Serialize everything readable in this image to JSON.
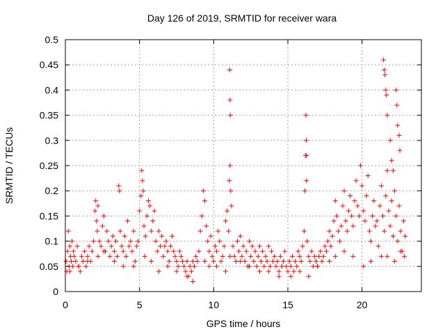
{
  "chart_data": {
    "type": "scatter",
    "title": "Day 126 of 2019, SRMTID for receiver wara",
    "xlabel": "GPS time / hours",
    "ylabel": "SRMTID / TECUs",
    "xlim": [
      0,
      24
    ],
    "ylim": [
      0,
      0.5
    ],
    "x_ticks": [
      0,
      5,
      10,
      15,
      20
    ],
    "x_tick_labels": [
      "0",
      "5",
      "10",
      "15",
      "20"
    ],
    "y_ticks": [
      0,
      0.05,
      0.1,
      0.15,
      0.2,
      0.25,
      0.3,
      0.35,
      0.4,
      0.45,
      0.5
    ],
    "y_tick_labels": [
      "0",
      "0.05",
      "0.1",
      "0.15",
      "0.2",
      "0.25",
      "0.3",
      "0.35",
      "0.4",
      "0.45",
      "0.5"
    ],
    "grid": true,
    "marker": "plus",
    "series_color": "#ff0000",
    "x": [
      0.05,
      0.1,
      0.15,
      0.2,
      0.25,
      0.3,
      0.35,
      0.4,
      0.45,
      0.5,
      0.55,
      0.6,
      0.7,
      0.8,
      0.9,
      1.0,
      1.1,
      1.2,
      1.3,
      1.4,
      1.5,
      1.6,
      1.7,
      1.8,
      1.9,
      2.0,
      2.05,
      2.1,
      2.15,
      2.2,
      2.3,
      2.4,
      2.5,
      2.6,
      2.7,
      2.8,
      2.9,
      3.0,
      3.1,
      3.2,
      3.3,
      3.4,
      3.5,
      3.6,
      3.65,
      3.7,
      3.8,
      3.9,
      4.0,
      4.1,
      4.2,
      4.3,
      4.4,
      4.5,
      4.6,
      4.7,
      4.8,
      4.9,
      5.0,
      5.1,
      5.15,
      5.2,
      5.25,
      5.3,
      5.4,
      5.5,
      5.6,
      5.7,
      5.8,
      5.9,
      6.0,
      6.1,
      6.2,
      6.3,
      6.4,
      6.5,
      6.6,
      6.7,
      6.8,
      6.9,
      7.0,
      7.1,
      7.2,
      7.3,
      7.4,
      7.5,
      7.6,
      7.7,
      7.8,
      7.9,
      8.0,
      8.1,
      8.2,
      8.3,
      8.4,
      8.5,
      8.6,
      8.7,
      8.8,
      8.9,
      9.0,
      9.1,
      9.2,
      9.3,
      9.4,
      9.5,
      9.6,
      9.7,
      9.8,
      9.9,
      10.0,
      10.1,
      10.2,
      10.3,
      10.4,
      10.5,
      10.6,
      10.7,
      10.8,
      10.9,
      11.0,
      11.05,
      11.1,
      11.15,
      11.2,
      11.3,
      11.4,
      11.5,
      11.6,
      11.7,
      11.8,
      11.9,
      12.0,
      12.1,
      12.2,
      12.3,
      12.4,
      12.5,
      12.6,
      12.7,
      12.8,
      12.9,
      13.0,
      13.1,
      13.2,
      13.3,
      13.4,
      13.5,
      13.6,
      13.7,
      13.8,
      13.9,
      14.0,
      14.1,
      14.2,
      14.3,
      14.4,
      14.5,
      14.6,
      14.7,
      14.8,
      14.9,
      15.0,
      15.1,
      15.2,
      15.3,
      15.4,
      15.5,
      15.6,
      15.7,
      15.8,
      15.9,
      16.0,
      16.1,
      16.15,
      16.2,
      16.25,
      16.3,
      16.4,
      16.5,
      16.6,
      16.7,
      16.8,
      16.9,
      17.0,
      17.1,
      17.2,
      17.3,
      17.4,
      17.5,
      17.6,
      17.7,
      17.8,
      17.9,
      18.0,
      18.1,
      18.2,
      18.3,
      18.4,
      18.5,
      18.6,
      18.7,
      18.8,
      18.9,
      19.0,
      19.1,
      19.2,
      19.3,
      19.4,
      19.5,
      19.6,
      19.7,
      19.8,
      19.9,
      20.0,
      20.1,
      20.2,
      20.3,
      20.4,
      20.5,
      20.6,
      20.7,
      20.8,
      20.9,
      21.0,
      21.1,
      21.2,
      21.3,
      21.4,
      21.5,
      21.6,
      21.7,
      21.8,
      21.9,
      22.0,
      22.1,
      22.2,
      22.3,
      22.4,
      22.5,
      22.6,
      22.7,
      22.8,
      22.9,
      0.3,
      0.9,
      1.5,
      2.2,
      2.6,
      3.3,
      3.9,
      4.6,
      5.35,
      5.8,
      6.3,
      6.9,
      7.5,
      8.2,
      8.6,
      9.4,
      9.7,
      10.2,
      10.8,
      11.1,
      11.8,
      12.4,
      13.1,
      13.7,
      14.4,
      15.2,
      15.8,
      16.4,
      17.0,
      17.8,
      18.2,
      18.8,
      19.4,
      20.1,
      20.6,
      21.3,
      21.7,
      22.2,
      22.6,
      22.85,
      11.08,
      11.1,
      11.12,
      16.22,
      16.24,
      16.26,
      21.45,
      21.5,
      21.55,
      21.6,
      21.65,
      21.7,
      22.3,
      22.35,
      22.4,
      22.5,
      22.55,
      21.9,
      22.0,
      22.1
    ],
    "y": [
      0.06,
      0.04,
      0.08,
      0.12,
      0.05,
      0.09,
      0.07,
      0.06,
      0.1,
      0.05,
      0.08,
      0.07,
      0.06,
      0.09,
      0.05,
      0.04,
      0.07,
      0.06,
      0.08,
      0.05,
      0.07,
      0.09,
      0.06,
      0.08,
      0.1,
      0.16,
      0.18,
      0.14,
      0.12,
      0.17,
      0.1,
      0.09,
      0.13,
      0.15,
      0.08,
      0.12,
      0.1,
      0.07,
      0.09,
      0.11,
      0.08,
      0.1,
      0.07,
      0.21,
      0.2,
      0.12,
      0.09,
      0.08,
      0.11,
      0.07,
      0.14,
      0.09,
      0.1,
      0.08,
      0.12,
      0.06,
      0.09,
      0.1,
      0.16,
      0.19,
      0.24,
      0.22,
      0.2,
      0.13,
      0.11,
      0.15,
      0.18,
      0.17,
      0.12,
      0.14,
      0.16,
      0.1,
      0.08,
      0.12,
      0.09,
      0.11,
      0.07,
      0.09,
      0.1,
      0.08,
      0.06,
      0.09,
      0.11,
      0.08,
      0.07,
      0.06,
      0.05,
      0.08,
      0.07,
      0.06,
      0.05,
      0.04,
      0.06,
      0.03,
      0.05,
      0.04,
      0.06,
      0.05,
      0.07,
      0.06,
      0.08,
      0.12,
      0.15,
      0.2,
      0.18,
      0.13,
      0.1,
      0.08,
      0.11,
      0.07,
      0.06,
      0.09,
      0.08,
      0.12,
      0.1,
      0.06,
      0.07,
      0.09,
      0.14,
      0.16,
      0.12,
      0.22,
      0.25,
      0.2,
      0.17,
      0.09,
      0.07,
      0.06,
      0.1,
      0.08,
      0.11,
      0.07,
      0.09,
      0.06,
      0.08,
      0.05,
      0.1,
      0.07,
      0.09,
      0.06,
      0.08,
      0.05,
      0.07,
      0.09,
      0.06,
      0.08,
      0.05,
      0.07,
      0.06,
      0.09,
      0.05,
      0.08,
      0.06,
      0.07,
      0.05,
      0.06,
      0.04,
      0.07,
      0.05,
      0.06,
      0.08,
      0.05,
      0.04,
      0.06,
      0.05,
      0.07,
      0.04,
      0.06,
      0.05,
      0.08,
      0.07,
      0.06,
      0.09,
      0.12,
      0.2,
      0.27,
      0.22,
      0.1,
      0.07,
      0.06,
      0.08,
      0.05,
      0.07,
      0.06,
      0.05,
      0.07,
      0.08,
      0.06,
      0.07,
      0.09,
      0.08,
      0.1,
      0.12,
      0.09,
      0.11,
      0.14,
      0.18,
      0.15,
      0.12,
      0.1,
      0.13,
      0.17,
      0.2,
      0.14,
      0.12,
      0.16,
      0.19,
      0.15,
      0.13,
      0.18,
      0.22,
      0.17,
      0.15,
      0.25,
      0.21,
      0.16,
      0.14,
      0.19,
      0.23,
      0.12,
      0.1,
      0.15,
      0.18,
      0.13,
      0.14,
      0.09,
      0.17,
      0.21,
      0.15,
      0.12,
      0.19,
      0.24,
      0.16,
      0.13,
      0.18,
      0.11,
      0.2,
      0.15,
      0.1,
      0.17,
      0.12,
      0.08,
      0.14,
      0.11,
      0.04,
      0.05,
      0.06,
      0.07,
      0.08,
      0.06,
      0.05,
      0.05,
      0.07,
      0.06,
      0.04,
      0.05,
      0.04,
      0.03,
      0.02,
      0.06,
      0.05,
      0.05,
      0.04,
      0.07,
      0.06,
      0.05,
      0.04,
      0.04,
      0.03,
      0.03,
      0.04,
      0.03,
      0.05,
      0.06,
      0.07,
      0.08,
      0.07,
      0.05,
      0.06,
      0.07,
      0.07,
      0.06,
      0.08,
      0.07,
      0.44,
      0.38,
      0.35,
      0.35,
      0.3,
      0.27,
      0.46,
      0.44,
      0.43,
      0.4,
      0.39,
      0.35,
      0.4,
      0.37,
      0.33,
      0.31,
      0.28,
      0.3,
      0.26,
      0.24
    ]
  }
}
